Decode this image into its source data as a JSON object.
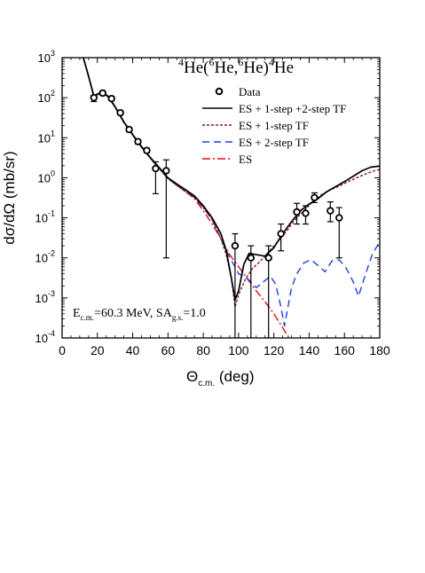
{
  "chart_data": {
    "type": "line",
    "title": {
      "pre": "4",
      "a": "He(",
      "b": "6",
      "c": "He,",
      "d": "6",
      "e": "He)",
      "f": "4",
      "g": "He"
    },
    "xlabel": {
      "main": "Θ",
      "sub": "c.m.",
      "unit": " (deg)"
    },
    "ylabel": "dσ/dΩ (mb/sr)",
    "xlim": [
      0,
      180
    ],
    "xticks": [
      "0",
      "20",
      "40",
      "60",
      "80",
      "100",
      "120",
      "140",
      "160",
      "180"
    ],
    "ylim_log10": [
      -4,
      3
    ],
    "yticks": [
      {
        "base": "10",
        "exp": "-4"
      },
      {
        "base": "10",
        "exp": "-3"
      },
      {
        "base": "10",
        "exp": "-2"
      },
      {
        "base": "10",
        "exp": "-1"
      },
      {
        "base": "10",
        "exp": "0"
      },
      {
        "base": "10",
        "exp": "1"
      },
      {
        "base": "10",
        "exp": "2"
      },
      {
        "base": "10",
        "exp": "3"
      }
    ],
    "y_scale": "log",
    "legend_position": "top-right",
    "annotation": {
      "e": "E",
      "esub": "c.m.",
      "emid": "=60.3 MeV, SA",
      "ssub": "g.s.",
      "tail": "=1.0"
    },
    "data_points": {
      "name": "Data",
      "points": [
        {
          "x": 18,
          "y": 100,
          "lo": 80,
          "hi": 115
        },
        {
          "x": 23,
          "y": 130,
          "lo": 115,
          "hi": 150
        },
        {
          "x": 28,
          "y": 95,
          "lo": 85,
          "hi": 108
        },
        {
          "x": 33,
          "y": 42,
          "lo": 37,
          "hi": 48
        },
        {
          "x": 38,
          "y": 16,
          "lo": 14,
          "hi": 18
        },
        {
          "x": 43,
          "y": 8,
          "lo": 7,
          "hi": 9
        },
        {
          "x": 48,
          "y": 4.8,
          "lo": 4.2,
          "hi": 5.5
        },
        {
          "x": 53,
          "y": 1.7,
          "lo": 0.4,
          "hi": 2.5
        },
        {
          "x": 59,
          "y": 1.5,
          "lo": 0.01,
          "hi": 2.8
        },
        {
          "x": 98,
          "y": 0.02,
          "lo": 0.0001,
          "hi": 0.04
        },
        {
          "x": 107,
          "y": 0.01,
          "lo": 0.0001,
          "hi": 0.02
        },
        {
          "x": 117,
          "y": 0.01,
          "lo": 0.0001,
          "hi": 0.02
        },
        {
          "x": 124,
          "y": 0.04,
          "lo": 0.015,
          "hi": 0.07
        },
        {
          "x": 133,
          "y": 0.14,
          "lo": 0.07,
          "hi": 0.23
        },
        {
          "x": 138,
          "y": 0.13,
          "lo": 0.07,
          "hi": 0.2
        },
        {
          "x": 143,
          "y": 0.32,
          "lo": 0.24,
          "hi": 0.42
        },
        {
          "x": 152,
          "y": 0.15,
          "lo": 0.08,
          "hi": 0.25
        },
        {
          "x": 157,
          "y": 0.1,
          "lo": 0.01,
          "hi": 0.18
        }
      ]
    },
    "series": [
      {
        "name": "ES + 1-step +2-step TF",
        "color": "#000000",
        "dash": "none",
        "x": [
          12,
          15,
          18,
          21,
          23,
          26,
          30,
          35,
          40,
          45,
          50,
          55,
          60,
          65,
          70,
          75,
          80,
          85,
          90,
          93,
          96,
          98,
          100,
          103,
          106,
          110,
          115,
          120,
          125,
          130,
          135,
          140,
          145,
          150,
          155,
          160,
          165,
          170,
          175,
          180
        ],
        "y": [
          1000,
          350,
          110,
          130,
          135,
          110,
          60,
          25,
          12,
          6,
          3.2,
          1.8,
          1.0,
          0.7,
          0.5,
          0.35,
          0.2,
          0.1,
          0.04,
          0.015,
          0.003,
          0.0009,
          0.0015,
          0.007,
          0.013,
          0.012,
          0.011,
          0.018,
          0.04,
          0.08,
          0.15,
          0.22,
          0.3,
          0.45,
          0.6,
          0.8,
          1.1,
          1.5,
          1.85,
          1.95
        ]
      },
      {
        "name": "ES + 1-step TF",
        "color": "#8b1a1a",
        "dash": "3,2",
        "x": [
          12,
          15,
          18,
          21,
          23,
          26,
          30,
          35,
          40,
          45,
          50,
          55,
          60,
          65,
          70,
          75,
          80,
          85,
          90,
          93,
          96,
          98,
          100,
          104,
          108,
          112,
          117,
          122,
          127,
          132,
          137,
          142,
          147,
          152,
          157,
          162,
          167,
          172,
          177,
          180
        ],
        "y": [
          1000,
          340,
          105,
          125,
          130,
          105,
          58,
          24,
          11.5,
          5.8,
          3.1,
          1.7,
          0.95,
          0.65,
          0.45,
          0.32,
          0.18,
          0.09,
          0.03,
          0.012,
          0.003,
          0.0006,
          0.0012,
          0.003,
          0.0055,
          0.008,
          0.014,
          0.025,
          0.045,
          0.09,
          0.15,
          0.25,
          0.38,
          0.5,
          0.62,
          0.8,
          1.0,
          1.25,
          1.5,
          1.6
        ]
      },
      {
        "name": "ES + 2-step TF",
        "color": "#1f3fe0",
        "dash": "8,5",
        "x": [
          12,
          15,
          18,
          21,
          23,
          26,
          30,
          35,
          40,
          45,
          50,
          55,
          60,
          65,
          70,
          75,
          80,
          85,
          90,
          95,
          98,
          100,
          103,
          106,
          110,
          114,
          118,
          121,
          124,
          126,
          128,
          130,
          133,
          137,
          141,
          145,
          149,
          153,
          157,
          161,
          165,
          168,
          172,
          176,
          180
        ],
        "y": [
          1000,
          340,
          105,
          125,
          130,
          105,
          58,
          24,
          11.5,
          5.8,
          3.1,
          1.7,
          0.95,
          0.65,
          0.45,
          0.32,
          0.18,
          0.09,
          0.03,
          0.01,
          0.006,
          0.004,
          0.0035,
          0.0028,
          0.0018,
          0.0025,
          0.0035,
          0.0022,
          0.0006,
          0.0002,
          0.0006,
          0.0018,
          0.004,
          0.0075,
          0.009,
          0.0065,
          0.0045,
          0.0085,
          0.009,
          0.0055,
          0.0025,
          0.0011,
          0.004,
          0.013,
          0.025
        ]
      },
      {
        "name": "ES",
        "color": "#dd1111",
        "dash": "9,3,2,3",
        "x": [
          12,
          15,
          18,
          21,
          23,
          26,
          30,
          35,
          40,
          45,
          50,
          55,
          60,
          65,
          70,
          75,
          80,
          85,
          90,
          95,
          100,
          105,
          110,
          115,
          120,
          125,
          128,
          130
        ],
        "y": [
          1000,
          340,
          105,
          125,
          130,
          105,
          58,
          24,
          11.5,
          5.8,
          3.1,
          1.7,
          0.95,
          0.65,
          0.45,
          0.3,
          0.15,
          0.07,
          0.03,
          0.012,
          0.006,
          0.003,
          0.0015,
          0.0008,
          0.0004,
          0.00018,
          0.00011,
          0.0001
        ]
      }
    ]
  }
}
